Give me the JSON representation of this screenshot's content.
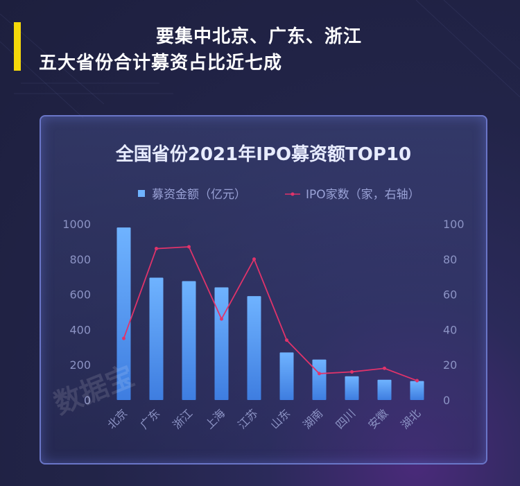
{
  "heading": {
    "line1": "要集中北京、广东、浙江",
    "line2": "五大省份合计募资占比近七成"
  },
  "watermark": "数据宝",
  "colors": {
    "accent": "#f5d90a",
    "bar": "#5ea8ff",
    "line": "#e0336a",
    "panel_border": "#6a76c8"
  },
  "chart_data": {
    "type": "bar",
    "title": "全国省份2021年IPO募资额TOP10",
    "categories": [
      "北京",
      "广东",
      "浙江",
      "上海",
      "江苏",
      "山东",
      "湖南",
      "四川",
      "安徽",
      "湖北"
    ],
    "series": [
      {
        "name": "募资金额（亿元）",
        "type": "bar",
        "axis": "left",
        "values": [
          980,
          695,
          675,
          640,
          590,
          270,
          230,
          135,
          115,
          108
        ]
      },
      {
        "name": "IPO家数（家，右轴）",
        "type": "line",
        "axis": "right",
        "values": [
          35,
          86,
          87,
          46,
          80,
          34,
          15,
          16,
          18,
          11
        ]
      }
    ],
    "ylim": [
      0,
      1000
    ],
    "yticks": [
      "0",
      "200",
      "400",
      "600",
      "800",
      "1000"
    ],
    "y2lim": [
      0,
      100
    ],
    "y2ticks": [
      "0",
      "20",
      "40",
      "60",
      "80",
      "100"
    ],
    "legend_position": "top-center",
    "grid": false
  }
}
